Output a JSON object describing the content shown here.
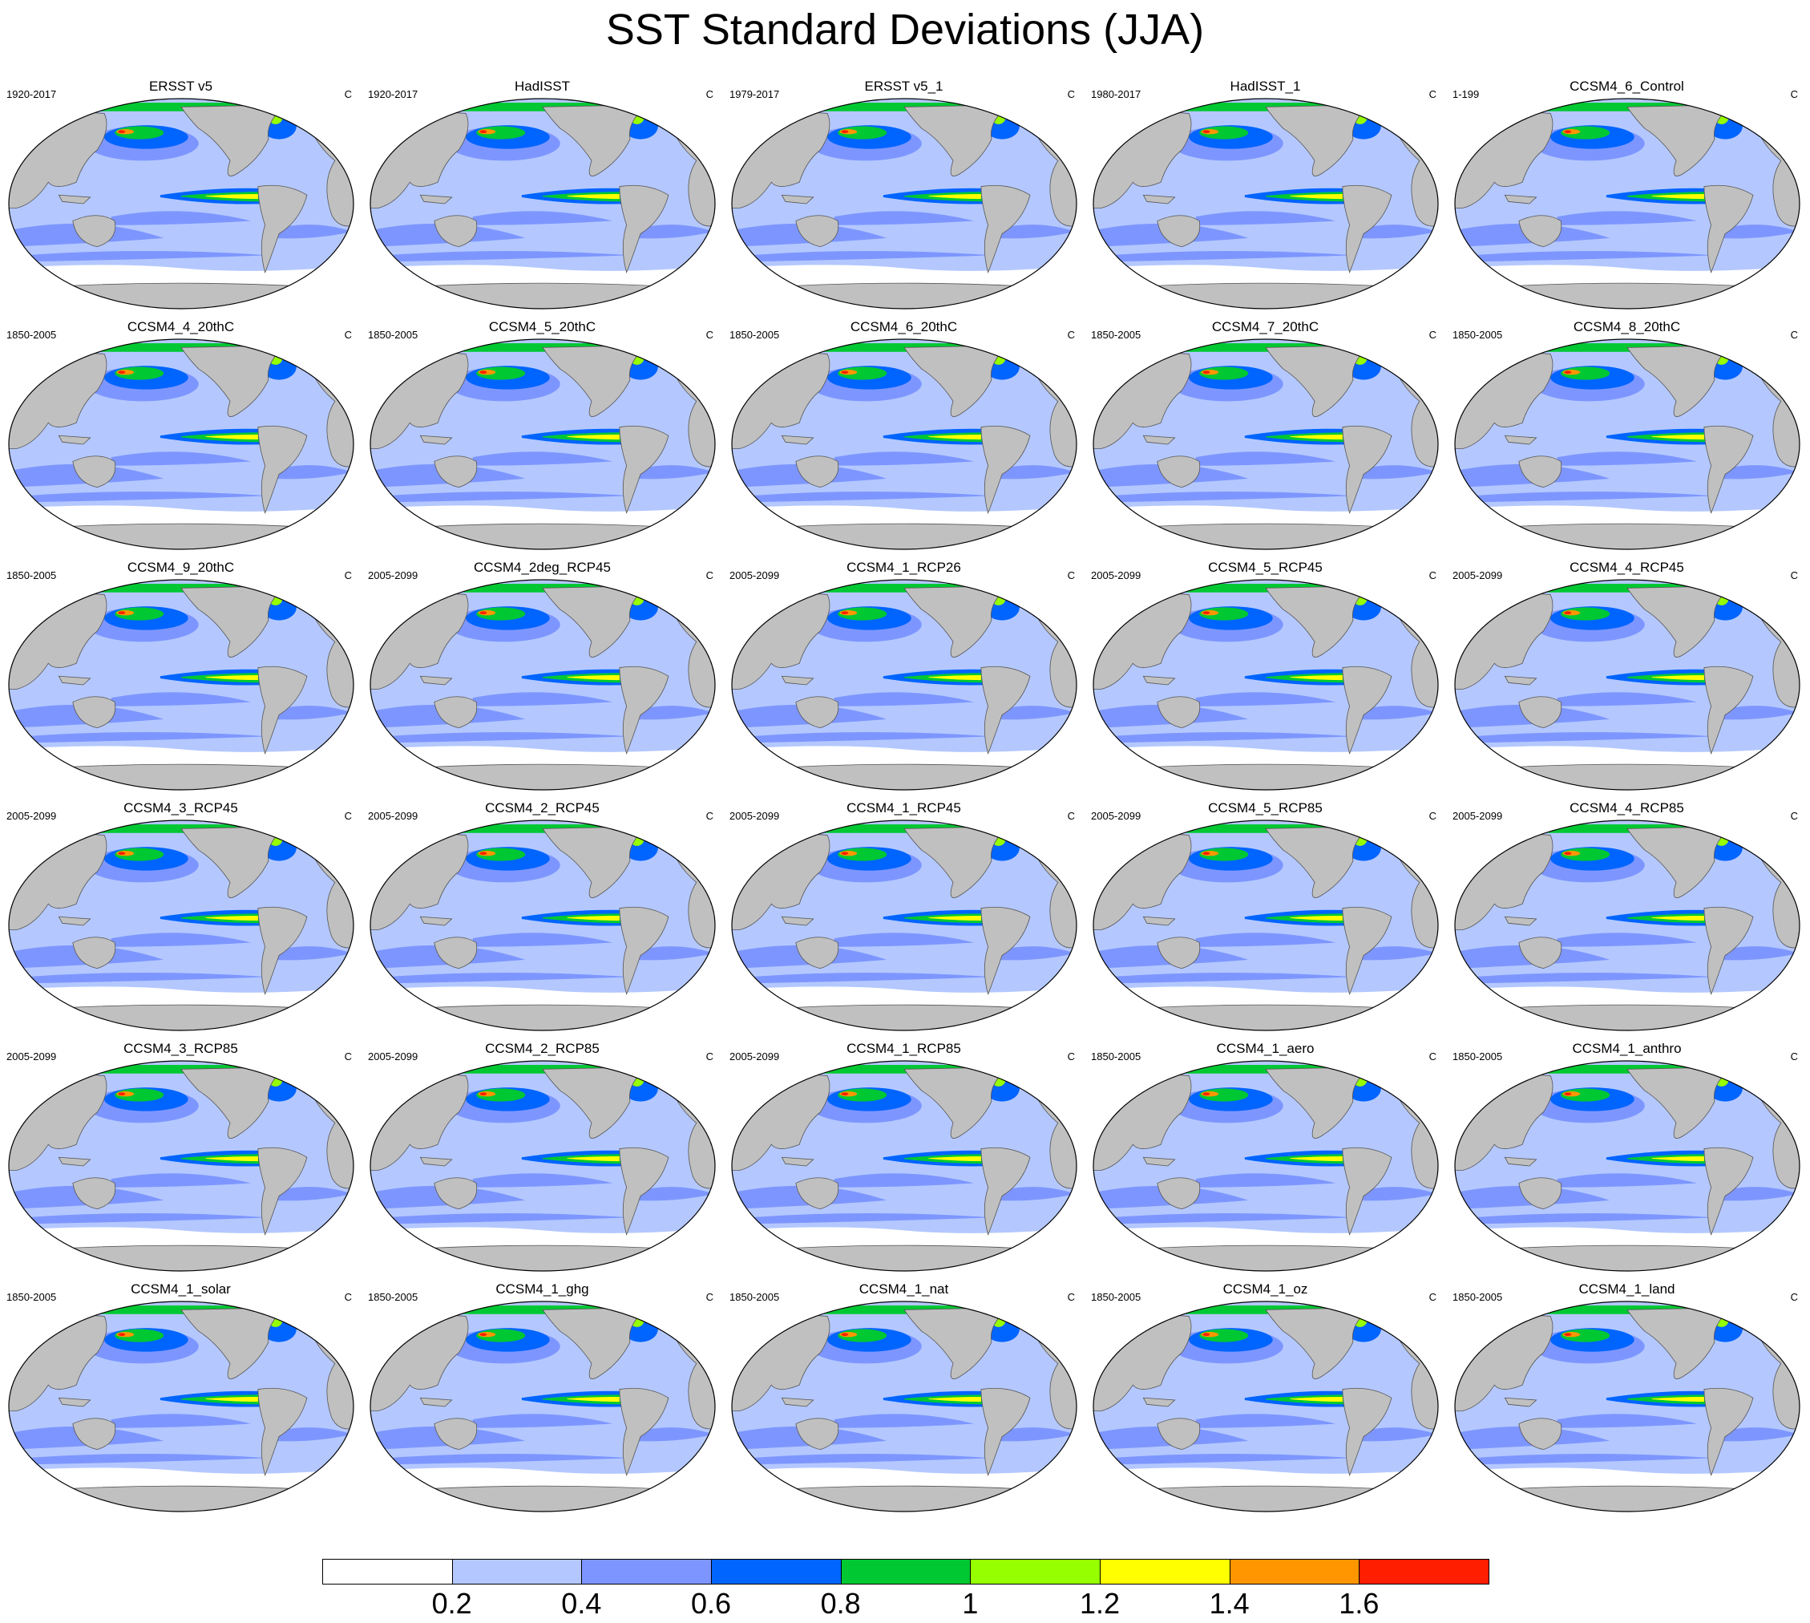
{
  "title": "SST Standard Deviations (JJA)",
  "unit": "C",
  "panels": [
    {
      "title": "ERSST v5",
      "period": "1920-2017"
    },
    {
      "title": "HadISST",
      "period": "1920-2017"
    },
    {
      "title": "ERSST v5_1",
      "period": "1979-2017"
    },
    {
      "title": "HadISST_1",
      "period": "1980-2017"
    },
    {
      "title": "CCSM4_6_Control",
      "period": "1-199"
    },
    {
      "title": "CCSM4_4_20thC",
      "period": "1850-2005"
    },
    {
      "title": "CCSM4_5_20thC",
      "period": "1850-2005"
    },
    {
      "title": "CCSM4_6_20thC",
      "period": "1850-2005"
    },
    {
      "title": "CCSM4_7_20thC",
      "period": "1850-2005"
    },
    {
      "title": "CCSM4_8_20thC",
      "period": "1850-2005"
    },
    {
      "title": "CCSM4_9_20thC",
      "period": "1850-2005"
    },
    {
      "title": "CCSM4_2deg_RCP45",
      "period": "2005-2099"
    },
    {
      "title": "CCSM4_1_RCP26",
      "period": "2005-2099"
    },
    {
      "title": "CCSM4_5_RCP45",
      "period": "2005-2099"
    },
    {
      "title": "CCSM4_4_RCP45",
      "period": "2005-2099"
    },
    {
      "title": "CCSM4_3_RCP45",
      "period": "2005-2099"
    },
    {
      "title": "CCSM4_2_RCP45",
      "period": "2005-2099"
    },
    {
      "title": "CCSM4_1_RCP45",
      "period": "2005-2099"
    },
    {
      "title": "CCSM4_5_RCP85",
      "period": "2005-2099"
    },
    {
      "title": "CCSM4_4_RCP85",
      "period": "2005-2099"
    },
    {
      "title": "CCSM4_3_RCP85",
      "period": "2005-2099"
    },
    {
      "title": "CCSM4_2_RCP85",
      "period": "2005-2099"
    },
    {
      "title": "CCSM4_1_RCP85",
      "period": "2005-2099"
    },
    {
      "title": "CCSM4_1_aero",
      "period": "1850-2005"
    },
    {
      "title": "CCSM4_1_anthro",
      "period": "1850-2005"
    },
    {
      "title": "CCSM4_1_solar",
      "period": "1850-2005"
    },
    {
      "title": "CCSM4_1_ghg",
      "period": "1850-2005"
    },
    {
      "title": "CCSM4_1_nat",
      "period": "1850-2005"
    },
    {
      "title": "CCSM4_1_oz",
      "period": "1850-2005"
    },
    {
      "title": "CCSM4_1_land",
      "period": "1850-2005"
    }
  ],
  "colorbar": {
    "colors": [
      "#ffffff",
      "#b4c8ff",
      "#7d96ff",
      "#0064ff",
      "#00c832",
      "#96ff00",
      "#ffff00",
      "#ff9600",
      "#ff1e00"
    ],
    "labels": [
      "0.2",
      "0.4",
      "0.6",
      "0.8",
      "1",
      "1.2",
      "1.4",
      "1.6"
    ]
  },
  "land_color": "#c0c0c0"
}
